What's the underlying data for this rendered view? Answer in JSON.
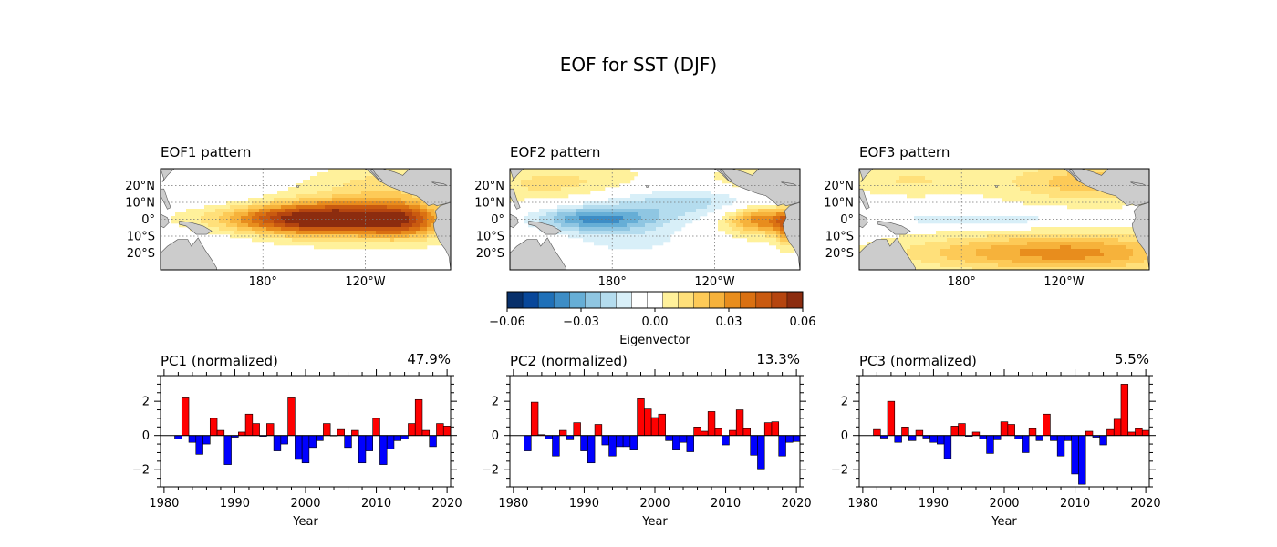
{
  "figure_title": "EOF for SST (DJF)",
  "colors": {
    "positive_bar": "#ff0000",
    "negative_bar": "#0000ff",
    "land": "#cccccc",
    "axis": "#000000"
  },
  "chart_data": [
    {
      "type": "heatmap",
      "title": "EOF1 pattern",
      "lat_ticks": [
        "20°N",
        "10°N",
        "0°",
        "10°S",
        "20°S"
      ],
      "lon_ticks": [
        "180°",
        "120°W"
      ],
      "lon_range_deg_east": [
        120,
        290
      ],
      "lat_range": [
        -30,
        30
      ],
      "features": [
        {
          "lon": 200,
          "lat": 0,
          "slon": 32,
          "slat": 6,
          "amp": 0.045
        },
        {
          "lon": 232,
          "lat": 1,
          "slon": 28,
          "slat": 8,
          "amp": 0.033
        },
        {
          "lon": 263,
          "lat": -1,
          "slon": 16,
          "slat": 7,
          "amp": 0.034
        },
        {
          "lon": 255,
          "lat": 20,
          "slon": 30,
          "slat": 8,
          "amp": 0.012
        },
        {
          "lon": 150,
          "lat": 16,
          "slon": 18,
          "slat": 6,
          "amp": -0.007
        },
        {
          "lon": 150,
          "lat": -18,
          "slon": 18,
          "slat": 7,
          "amp": -0.006
        }
      ]
    },
    {
      "type": "heatmap",
      "title": "EOF2 pattern",
      "lat_ticks": [
        "20°N",
        "10°N",
        "0°",
        "10°S",
        "20°S"
      ],
      "lon_ticks": [
        "180°",
        "120°W"
      ],
      "lon_range_deg_east": [
        120,
        290
      ],
      "lat_range": [
        -30,
        30
      ],
      "features": [
        {
          "lon": 170,
          "lat": 0,
          "slon": 26,
          "slat": 5,
          "amp": -0.032
        },
        {
          "lon": 220,
          "lat": 10,
          "slon": 45,
          "slat": 7,
          "amp": -0.02
        },
        {
          "lon": 190,
          "lat": -12,
          "slon": 30,
          "slat": 8,
          "amp": -0.012
        },
        {
          "lon": 268,
          "lat": 0,
          "slon": 16,
          "slat": 6,
          "amp": 0.037
        },
        {
          "lon": 283,
          "lat": -5,
          "slon": 5,
          "slat": 7,
          "amp": 0.03
        },
        {
          "lon": 150,
          "lat": 20,
          "slon": 35,
          "slat": 8,
          "amp": 0.013
        },
        {
          "lon": 260,
          "lat": 22,
          "slon": 18,
          "slat": 6,
          "amp": 0.01
        }
      ]
    },
    {
      "type": "heatmap",
      "title": "EOF3 pattern",
      "lat_ticks": [
        "20°N",
        "10°N",
        "0°",
        "10°S",
        "20°S"
      ],
      "lon_ticks": [
        "180°",
        "120°W"
      ],
      "lon_range_deg_east": [
        120,
        290
      ],
      "lat_range": [
        -30,
        30
      ],
      "features": [
        {
          "lon": 190,
          "lat": 0,
          "slon": 40,
          "slat": 3,
          "amp": -0.016
        },
        {
          "lon": 255,
          "lat": -20,
          "slon": 40,
          "slat": 8,
          "amp": 0.026
        },
        {
          "lon": 190,
          "lat": -20,
          "slon": 40,
          "slat": 7,
          "amp": 0.016
        },
        {
          "lon": 255,
          "lat": 22,
          "slon": 35,
          "slat": 8,
          "amp": 0.02
        },
        {
          "lon": 150,
          "lat": 23,
          "slon": 25,
          "slat": 6,
          "amp": 0.01
        }
      ]
    },
    {
      "type": "colorbar",
      "label": "Eigenvector",
      "ticks": [
        "−0.06",
        "−0.03",
        "0.00",
        "0.03",
        "0.06"
      ],
      "range": [
        -0.06,
        0.06
      ],
      "levels": [
        "#08306b",
        "#08479a",
        "#1f70b8",
        "#3d8dc6",
        "#66aed6",
        "#8fc6e2",
        "#b4dcee",
        "#d8eff8",
        "#ffffff",
        "#ffffff",
        "#fff19b",
        "#ffe07a",
        "#fdca57",
        "#f6b23b",
        "#e88d1d",
        "#da7112",
        "#c95a10",
        "#b5450f",
        "#8c2c0f"
      ]
    },
    {
      "type": "bar",
      "title": "PC1 (normalized)",
      "variance": "47.9%",
      "xlabel": "Year",
      "x_ticks": [
        "1980",
        "1990",
        "2000",
        "2010",
        "2020"
      ],
      "xlim": [
        1979.5,
        2020.5
      ],
      "y_ticks": [
        "2",
        "0",
        "−2"
      ],
      "ylim": [
        -3,
        3.5
      ],
      "x_start": 1982,
      "values": [
        -0.2,
        2.2,
        -0.4,
        -1.1,
        -0.5,
        1.0,
        0.3,
        -1.7,
        -0.1,
        0.2,
        1.25,
        0.7,
        -0.05,
        0.7,
        -0.9,
        -0.5,
        2.2,
        -1.4,
        -1.6,
        -0.7,
        -0.3,
        0.7,
        0.0,
        0.35,
        -0.7,
        0.3,
        -1.6,
        -0.9,
        1.0,
        -1.7,
        -0.8,
        -0.3,
        -0.2,
        0.7,
        2.1,
        0.3,
        -0.65,
        0.7,
        0.55
      ]
    },
    {
      "type": "bar",
      "title": "PC2 (normalized)",
      "variance": "13.3%",
      "xlabel": "Year",
      "x_ticks": [
        "1980",
        "1990",
        "2000",
        "2010",
        "2020"
      ],
      "xlim": [
        1979.5,
        2020.5
      ],
      "y_ticks": [
        "2",
        "0",
        "−2"
      ],
      "ylim": [
        -3,
        3.5
      ],
      "x_start": 1982,
      "values": [
        -0.9,
        1.95,
        0.05,
        -0.2,
        -1.2,
        0.3,
        -0.25,
        0.75,
        -0.9,
        -1.6,
        0.65,
        -0.55,
        -1.2,
        -0.65,
        -0.65,
        -0.85,
        2.15,
        1.55,
        1.05,
        1.25,
        -0.3,
        -0.85,
        -0.4,
        -0.95,
        0.5,
        0.25,
        1.4,
        0.4,
        -0.55,
        0.3,
        1.5,
        0.4,
        -1.15,
        -1.95,
        0.75,
        0.8,
        -1.2,
        -0.4,
        -0.35
      ]
    },
    {
      "type": "bar",
      "title": "PC3 (normalized)",
      "variance": "5.5%",
      "xlabel": "Year",
      "x_ticks": [
        "1980",
        "1990",
        "2000",
        "2010",
        "2020"
      ],
      "xlim": [
        1979.5,
        2020.5
      ],
      "y_ticks": [
        "2",
        "0",
        "−2"
      ],
      "ylim": [
        -3,
        3.5
      ],
      "x_start": 1982,
      "values": [
        0.35,
        -0.15,
        2.0,
        -0.4,
        0.5,
        -0.3,
        0.3,
        -0.15,
        -0.4,
        -0.5,
        -1.35,
        0.55,
        0.7,
        -0.05,
        0.2,
        -0.2,
        -1.05,
        -0.25,
        0.8,
        0.65,
        -0.2,
        -1.0,
        0.4,
        -0.3,
        1.25,
        -0.3,
        -1.2,
        -0.3,
        -2.25,
        -2.85,
        0.25,
        -0.1,
        -0.55,
        0.35,
        0.95,
        3.0,
        0.2,
        0.4,
        0.3
      ]
    }
  ]
}
